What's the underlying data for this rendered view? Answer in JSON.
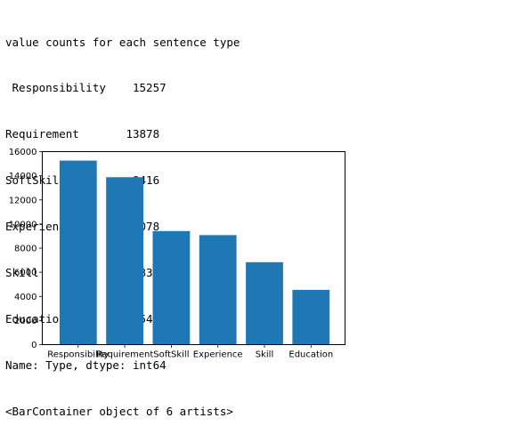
{
  "output": {
    "heading": "value counts for each sentence type",
    "rows": [
      " Responsibility    15257",
      "Requirement       13878",
      "SoftSkill          9416",
      "Experience         9078",
      "Skill              6833",
      "Education          4540"
    ],
    "dtype_line": "Name: Type, dtype: int64",
    "repr_line": "<BarContainer object of 6 artists>"
  },
  "chart_data": {
    "type": "bar",
    "title": "",
    "xlabel": "",
    "ylabel": "",
    "categories": [
      "Responsibility",
      "Requirement",
      "SoftSkill",
      "Experience",
      "Skill",
      "Education"
    ],
    "values": [
      15257,
      13878,
      9416,
      9078,
      6833,
      4540
    ],
    "ylim": [
      0,
      16000
    ],
    "yticks": [
      0,
      2000,
      4000,
      6000,
      8000,
      10000,
      12000,
      14000,
      16000
    ],
    "bar_color": "#1f77b4",
    "grid": false
  }
}
